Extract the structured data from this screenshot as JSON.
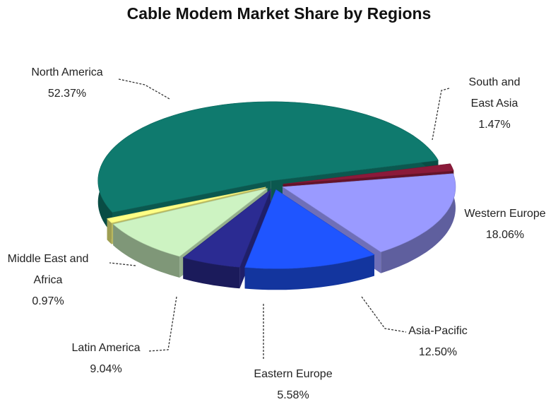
{
  "chart_data": {
    "type": "pie",
    "title": "Cable Modem Market Share by Regions",
    "categories": [
      "North America",
      "South and East Asia",
      "Western Europe",
      "Asia-Pacific",
      "Eastern Europe",
      "Latin America",
      "Middle East and Africa"
    ],
    "values": [
      52.37,
      1.47,
      18.06,
      12.5,
      5.58,
      9.04,
      0.97
    ],
    "value_labels": [
      "52.37%",
      "1.47%",
      "18.06%",
      "12.50%",
      "5.58%",
      "9.04%",
      "0.97%"
    ],
    "colors": [
      "#0f7a6e",
      "#8b1a3a",
      "#9a9aff",
      "#1f55ff",
      "#2b2b92",
      "#cdf3c2",
      "#ffff85"
    ]
  }
}
